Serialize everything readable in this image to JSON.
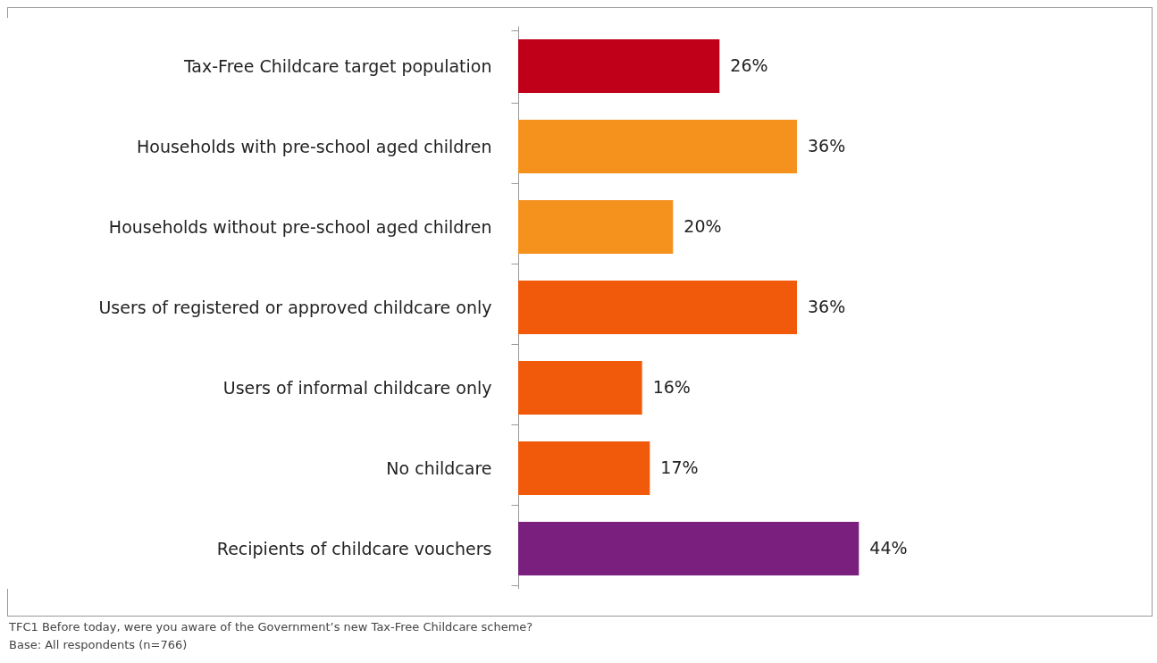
{
  "chart_data": {
    "type": "bar",
    "orientation": "horizontal",
    "grid": false,
    "value_labels": [
      "26%",
      "36%",
      "20%",
      "36%",
      "16%",
      "17%",
      "44%"
    ],
    "categories": [
      "Tax-Free Childcare target population",
      "Households with pre-school aged children",
      "Households without pre-school aged children",
      "Users of registered or approved childcare only",
      "Users of informal childcare only",
      "No childcare",
      "Recipients of childcare vouchers"
    ],
    "values": [
      26,
      36,
      20,
      36,
      16,
      17,
      44
    ],
    "colors": [
      "#c00018",
      "#f5921e",
      "#f5921e",
      "#f05a0a",
      "#f05a0a",
      "#f05a0a",
      "#7b1f7f"
    ],
    "annotations": [
      "TFC1 Before today, were you aware of the Government’s new Tax-Free Childcare scheme?",
      "Base: All respondents (n=766)"
    ]
  }
}
